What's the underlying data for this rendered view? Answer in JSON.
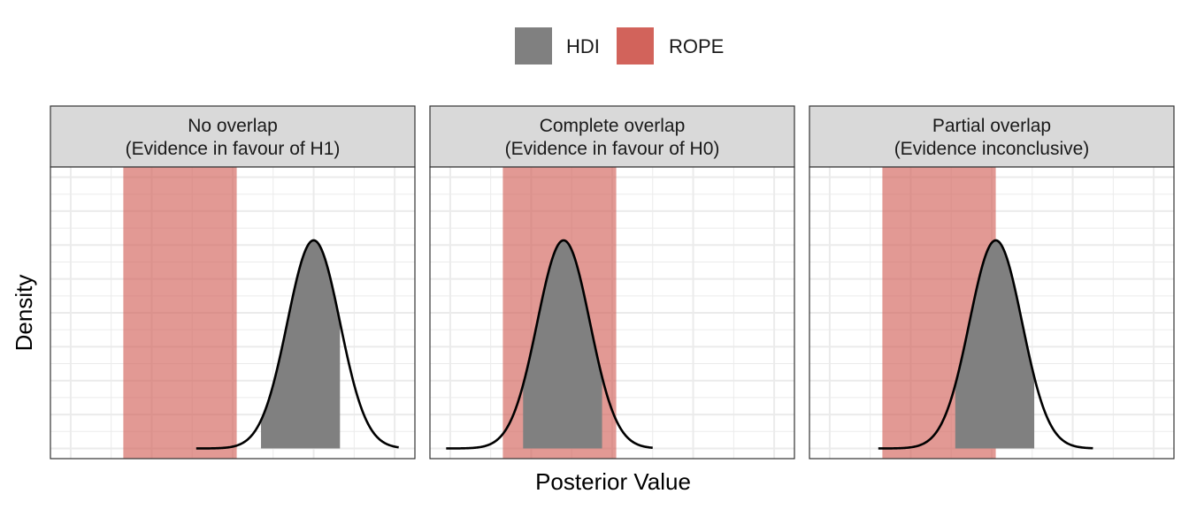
{
  "chart_data": {
    "type": "area",
    "title": "",
    "xlabel": "Posterior Value",
    "ylabel": "Density",
    "legend": {
      "placement": "top",
      "items": [
        {
          "label": "HDI",
          "color": "#808080"
        },
        {
          "label": "ROPE",
          "color": "#D2635B"
        }
      ]
    },
    "x_ticks_visible": false,
    "y_ticks_visible": false,
    "grid": true,
    "panels": [
      {
        "strip_line1": "No overlap",
        "strip_line2": "(Evidence in favour of H1)",
        "xlim": [
          -4.5,
          4.5
        ],
        "ylim": [
          -0.03,
          0.83
        ],
        "curve": {
          "mean": 2.0,
          "sd": 0.65,
          "xmin": -0.9,
          "xmax": 4.1
        },
        "hdi": [
          0.7,
          2.65
        ],
        "rope": [
          -2.7,
          0.1
        ]
      },
      {
        "strip_line1": "Complete overlap",
        "strip_line2": "(Evidence in favour of H0)",
        "xlim": [
          -4.5,
          4.5
        ],
        "ylim": [
          -0.03,
          0.83
        ],
        "curve": {
          "mean": -1.2,
          "sd": 0.65,
          "xmin": -4.1,
          "xmax": 1.0
        },
        "hdi": [
          -2.2,
          -0.25
        ],
        "rope": [
          -2.7,
          0.1
        ]
      },
      {
        "strip_line1": "Partial overlap",
        "strip_line2": "(Evidence inconclusive)",
        "xlim": [
          -4.5,
          4.5
        ],
        "ylim": [
          -0.03,
          0.83
        ],
        "curve": {
          "mean": 0.1,
          "sd": 0.65,
          "xmin": -2.8,
          "xmax": 2.5
        },
        "hdi": [
          -0.9,
          1.05
        ],
        "rope": [
          -2.7,
          0.1
        ]
      }
    ]
  }
}
